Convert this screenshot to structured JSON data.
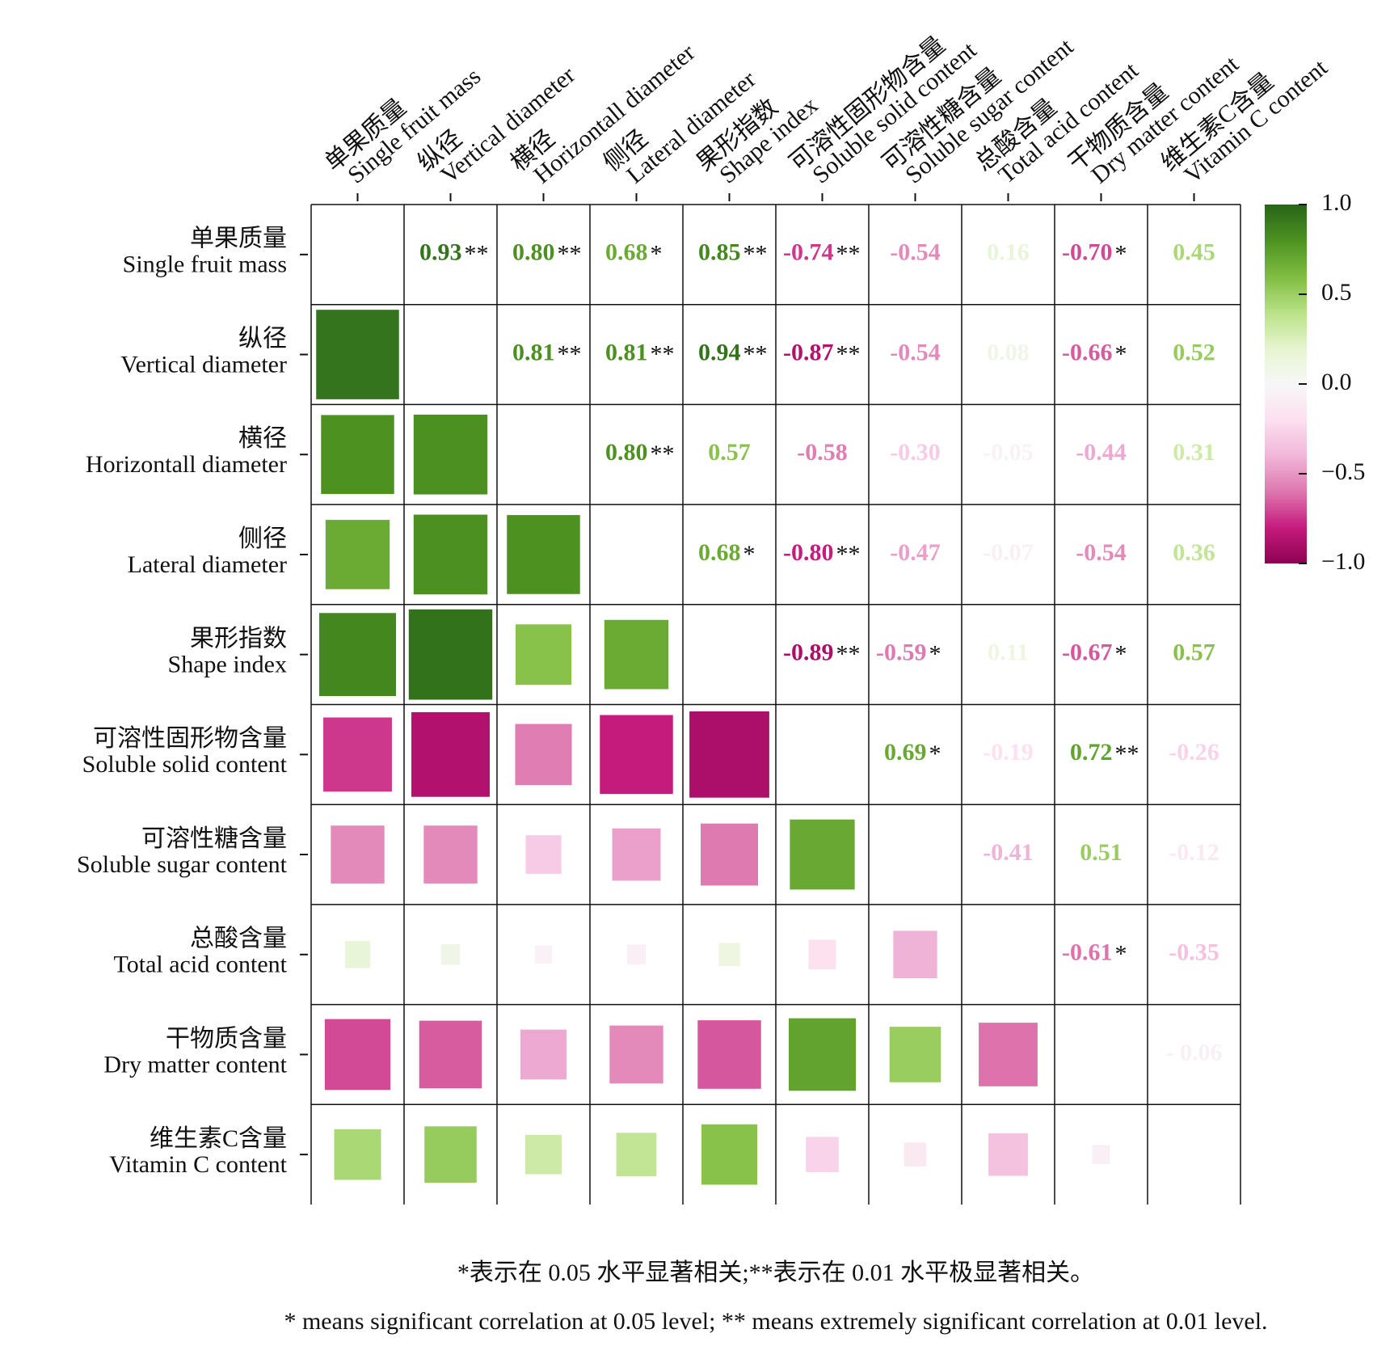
{
  "chart_data": {
    "type": "correlation-heatmap",
    "variables": [
      {
        "cn": "单果质量",
        "en": "Single fruit mass"
      },
      {
        "cn": "纵径",
        "en": "Vertical diameter"
      },
      {
        "cn": "横径",
        "en": "Horizontall diameter"
      },
      {
        "cn": "侧径",
        "en": "Lateral diameter"
      },
      {
        "cn": "果形指数",
        "en": "Shape index"
      },
      {
        "cn": "可溶性固形物含量",
        "en": "Soluble solid content"
      },
      {
        "cn": "可溶性糖含量",
        "en": "Soluble sugar content"
      },
      {
        "cn": "总酸含量",
        "en": "Total acid content"
      },
      {
        "cn": "干物质含量",
        "en": "Dry matter content"
      },
      {
        "cn": "维生素C含量",
        "en": "Vitamin C content"
      }
    ],
    "values": [
      [
        null,
        0.93,
        0.8,
        0.68,
        0.85,
        -0.74,
        -0.54,
        0.16,
        -0.7,
        0.45
      ],
      [
        null,
        null,
        0.81,
        0.81,
        0.94,
        -0.87,
        -0.54,
        0.08,
        -0.66,
        0.52
      ],
      [
        null,
        null,
        null,
        0.8,
        0.57,
        -0.58,
        -0.3,
        -0.05,
        -0.44,
        0.31
      ],
      [
        null,
        null,
        null,
        null,
        0.68,
        -0.8,
        -0.47,
        -0.07,
        -0.54,
        0.36
      ],
      [
        null,
        null,
        null,
        null,
        null,
        -0.89,
        -0.59,
        0.11,
        -0.67,
        0.57
      ],
      [
        null,
        null,
        null,
        null,
        null,
        null,
        0.69,
        -0.19,
        0.72,
        -0.26
      ],
      [
        null,
        null,
        null,
        null,
        null,
        null,
        null,
        -0.41,
        0.51,
        -0.12
      ],
      [
        null,
        null,
        null,
        null,
        null,
        null,
        null,
        null,
        -0.61,
        -0.35
      ],
      [
        null,
        null,
        null,
        null,
        null,
        null,
        null,
        null,
        null,
        -0.06
      ],
      [
        null,
        null,
        null,
        null,
        null,
        null,
        null,
        null,
        null,
        null
      ]
    ],
    "value_labels": [
      [
        null,
        "0.93",
        "0.80",
        "0.68",
        "0.85",
        "-0.74",
        "-0.54",
        "0.16",
        "-0.70",
        "0.45"
      ],
      [
        null,
        null,
        "0.81",
        "0.81",
        "0.94",
        "-0.87",
        "-0.54",
        "0.08",
        "-0.66",
        "0.52"
      ],
      [
        null,
        null,
        null,
        "0.80",
        "0.57",
        "-0.58",
        "-0.30",
        "-0.05",
        "-0.44",
        "0.31"
      ],
      [
        null,
        null,
        null,
        null,
        "0.68",
        "-0.80",
        "-0.47",
        "-0.07",
        "-0.54",
        "0.36"
      ],
      [
        null,
        null,
        null,
        null,
        null,
        "-0.89",
        "-0.59",
        "0.11",
        "-0.67",
        "0.57"
      ],
      [
        null,
        null,
        null,
        null,
        null,
        null,
        "0.69",
        "-0.19",
        "0.72",
        "-0.26"
      ],
      [
        null,
        null,
        null,
        null,
        null,
        null,
        null,
        "-0.41",
        "0.51",
        "-0.12"
      ],
      [
        null,
        null,
        null,
        null,
        null,
        null,
        null,
        null,
        "-0.61",
        "-0.35"
      ],
      [
        null,
        null,
        null,
        null,
        null,
        null,
        null,
        null,
        null,
        "- 0.06"
      ],
      [
        null,
        null,
        null,
        null,
        null,
        null,
        null,
        null,
        null,
        null
      ]
    ],
    "significance": [
      [
        null,
        "**",
        "**",
        "*",
        "**",
        "**",
        null,
        null,
        "*",
        null
      ],
      [
        null,
        null,
        "**",
        "**",
        "**",
        "**",
        null,
        null,
        "*",
        null
      ],
      [
        null,
        null,
        null,
        "**",
        null,
        null,
        null,
        null,
        null,
        null
      ],
      [
        null,
        null,
        null,
        null,
        "*",
        "**",
        null,
        null,
        null,
        null
      ],
      [
        null,
        null,
        null,
        null,
        null,
        "**",
        "*",
        null,
        "*",
        null
      ],
      [
        null,
        null,
        null,
        null,
        null,
        null,
        "*",
        null,
        "**",
        null
      ],
      [
        null,
        null,
        null,
        null,
        null,
        null,
        null,
        null,
        null,
        null
      ],
      [
        null,
        null,
        null,
        null,
        null,
        null,
        null,
        null,
        "*",
        null
      ],
      [
        null,
        null,
        null,
        null,
        null,
        null,
        null,
        null,
        null,
        null
      ],
      [
        null,
        null,
        null,
        null,
        null,
        null,
        null,
        null,
        null,
        null
      ]
    ],
    "zlim": [
      -1,
      1
    ],
    "zticks": [
      {
        "value": 1,
        "label": "1.0"
      },
      {
        "value": 0.5,
        "label": "0.5"
      },
      {
        "value": 0,
        "label": "0.0"
      },
      {
        "value": -0.5,
        "label": "−0.5"
      },
      {
        "value": -1,
        "label": "−1.0"
      }
    ],
    "colors": [
      "#8e0152",
      "#c51b7d",
      "#de77ae",
      "#f1b6da",
      "#fde0ef",
      "#f7f7f7",
      "#e6f5d0",
      "#b8e186",
      "#7fbc41",
      "#4d9221",
      "#276419"
    ],
    "notes": [
      "*表示在 0.05 水平显著相关;**表示在 0.01 水平极显著相关。",
      "* means significant correlation at 0.05 level; ** means extremely significant correlation at 0.01 level."
    ]
  }
}
